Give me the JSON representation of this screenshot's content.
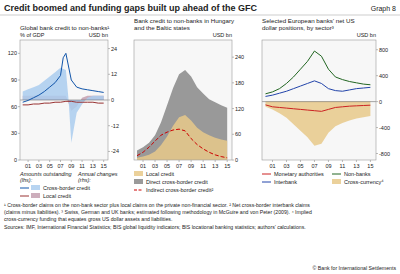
{
  "title": "Credit boomed and funding gaps built up ahead of the GFC",
  "annotations": [
    "Graph 8"
  ],
  "footnotes": [
    "¹ Cross-border claims on the non-bank sector plus local claims on the private non-financial sector.   ² Net cross-border interbank claims",
    "(claims minus liabilities).   ³ Swiss, German and UK banks; estimated following methodology in McGuire and von Peter (2009).   ⁴ Implied",
    "cross-currency funding that equates gross US dollar assets and liabilities."
  ],
  "source": "Sources: IMF, International Financial Statistics; BIS global liquidity indicators; BIS locational banking statistics; authors’ calculations.",
  "copyright": "© Bank for International Settlements",
  "chart_data": [
    {
      "type": "line",
      "title": "Global bank credit to non-banks¹",
      "y_label": "% of GDP",
      "y2_label": "USD bn",
      "xlim": [
        1999.5,
        2015.8
      ],
      "xticks": [
        {
          "value": 2001,
          "label": "01"
        },
        {
          "value": 2003,
          "label": "03"
        },
        {
          "value": 2005,
          "label": "05"
        },
        {
          "value": 2007,
          "label": "07"
        },
        {
          "value": 2009,
          "label": "09"
        },
        {
          "value": 2011,
          "label": "11"
        },
        {
          "value": 2013,
          "label": "13"
        },
        {
          "value": 2015,
          "label": "15"
        }
      ],
      "ylim": [
        0,
        135
      ],
      "yticks": [
        0,
        30,
        60,
        90,
        120
      ],
      "y2lim": [
        -28,
        28
      ],
      "y2ticks": [
        -24,
        -12,
        0,
        12,
        24
      ],
      "annotations": [
        "Amounts outstanding\n(lhs):",
        "Annual changes\n(rhs):"
      ],
      "series": [
        {
          "name": "Cross-border credit",
          "type": "line",
          "color": "#1155aa",
          "x": [
            2000,
            2001,
            2002,
            2003,
            2004,
            2005,
            2006,
            2007,
            2007.5,
            2008,
            2009,
            2010,
            2011,
            2012,
            2013,
            2014,
            2015
          ],
          "values": [
            65,
            67,
            70,
            73,
            77,
            82,
            87,
            95,
            115,
            120,
            90,
            82,
            80,
            79,
            78,
            77,
            76
          ]
        },
        {
          "name": "Local credit",
          "type": "line",
          "color": "#993333",
          "x": [
            2000,
            2001,
            2002,
            2003,
            2004,
            2005,
            2006,
            2007,
            2008,
            2009,
            2010,
            2011,
            2012,
            2013,
            2014,
            2015
          ],
          "values": [
            62,
            62,
            63,
            63,
            64,
            64,
            65,
            65,
            66,
            66,
            65,
            65,
            65,
            65,
            64,
            64
          ]
        },
        {
          "name": "Cross-border credit",
          "type": "area",
          "axis": "y2",
          "color": "#aaccee",
          "x": [
            2000,
            2001,
            2002,
            2003,
            2004,
            2005,
            2006,
            2007,
            2008,
            2008.5,
            2009,
            2010,
            2011,
            2012,
            2013,
            2014,
            2015
          ],
          "values": [
            4,
            5,
            6,
            7,
            9,
            11,
            13,
            15,
            14,
            0,
            -20,
            -6,
            -2,
            1,
            2,
            2,
            2
          ]
        },
        {
          "name": "Local credit",
          "type": "area",
          "axis": "y2",
          "color": "#c4a0b0",
          "x": [
            2000,
            2001,
            2002,
            2003,
            2004,
            2005,
            2006,
            2007,
            2008,
            2009,
            2010,
            2011,
            2012,
            2013,
            2014,
            2015
          ],
          "values": [
            2,
            2,
            2,
            2,
            2,
            2,
            2,
            2,
            2,
            -5,
            -3,
            1,
            2,
            2,
            2,
            2
          ]
        }
      ]
    },
    {
      "type": "area",
      "title": "Bank credit to non-banks in Hungary\nand the Baltic states",
      "y_label": "USD bn",
      "x": [
        2000,
        2001,
        2002,
        2003,
        2004,
        2005,
        2006,
        2007,
        2008,
        2009,
        2010,
        2011,
        2012,
        2013,
        2014,
        2015
      ],
      "xlim": [
        1999.5,
        2015.8
      ],
      "xticks": [
        {
          "value": 2001,
          "label": "01"
        },
        {
          "value": 2003,
          "label": "03"
        },
        {
          "value": 2005,
          "label": "05"
        },
        {
          "value": 2007,
          "label": "07"
        },
        {
          "value": 2009,
          "label": "09"
        },
        {
          "value": 2011,
          "label": "11"
        },
        {
          "value": 2013,
          "label": "13"
        },
        {
          "value": 2015,
          "label": "15"
        }
      ],
      "ylim": [
        0,
        280
      ],
      "yticks": [
        0,
        60,
        120,
        180,
        240
      ],
      "series": [
        {
          "name": "Local credit",
          "type": "area",
          "color": "#e8c98a",
          "values": [
            5,
            8,
            12,
            20,
            35,
            55,
            80,
            100,
            105,
            92,
            75,
            65,
            58,
            52,
            48,
            45
          ]
        },
        {
          "name": "Direct cross-border credit",
          "type": "area",
          "color": "#888888",
          "values": [
            22,
            30,
            40,
            58,
            88,
            128,
            168,
            200,
            210,
            195,
            170,
            155,
            142,
            135,
            128,
            122
          ]
        },
        {
          "name": "Indirect cross-border credit²",
          "type": "line",
          "line_style": "dashed",
          "color": "#cc0000",
          "values": [
            10,
            18,
            30,
            44,
            58,
            65,
            70,
            72,
            68,
            50,
            36,
            26,
            18,
            12,
            8,
            5
          ]
        }
      ]
    },
    {
      "type": "line",
      "title": "Selected European banks’ net US\ndollar positions, by sector³",
      "y_label": "USD bn",
      "x": [
        2000,
        2001,
        2002,
        2003,
        2004,
        2005,
        2006,
        2007,
        2008,
        2009,
        2010,
        2011,
        2012,
        2013,
        2014,
        2015
      ],
      "xlim": [
        1999.5,
        2015.8
      ],
      "xticks": [
        {
          "value": 2001,
          "label": "01"
        },
        {
          "value": 2003,
          "label": "03"
        },
        {
          "value": 2005,
          "label": "05"
        },
        {
          "value": 2007,
          "label": "07"
        },
        {
          "value": 2009,
          "label": "09"
        },
        {
          "value": 2011,
          "label": "11"
        },
        {
          "value": 2013,
          "label": "13"
        },
        {
          "value": 2015,
          "label": "15"
        }
      ],
      "ylim": [
        -900,
        950
      ],
      "yticks": [
        -800,
        -400,
        0,
        400,
        800
      ],
      "series": [
        {
          "name": "Monetary authorities",
          "type": "line",
          "color": "#cc2222",
          "values": [
            -50,
            -80,
            -90,
            -100,
            -110,
            -120,
            -130,
            -140,
            -150,
            -120,
            -90,
            -80,
            -70,
            -65,
            -60,
            -55
          ]
        },
        {
          "name": "Non-banks",
          "type": "line",
          "color": "#226622",
          "values": [
            120,
            150,
            200,
            280,
            380,
            500,
            620,
            780,
            700,
            500,
            380,
            340,
            310,
            290,
            270,
            260
          ]
        },
        {
          "name": "Interbank",
          "type": "line",
          "color": "#2244aa",
          "values": [
            80,
            100,
            130,
            160,
            200,
            240,
            280,
            320,
            280,
            200,
            170,
            160,
            180,
            200,
            210,
            220
          ]
        },
        {
          "name": "Cross-currency⁴",
          "type": "area",
          "color": "#e8c98a",
          "values": [
            -80,
            -120,
            -180,
            -250,
            -350,
            -450,
            -550,
            -680,
            -650,
            -480,
            -380,
            -330,
            -290,
            -260,
            -240,
            -220
          ]
        }
      ]
    }
  ]
}
